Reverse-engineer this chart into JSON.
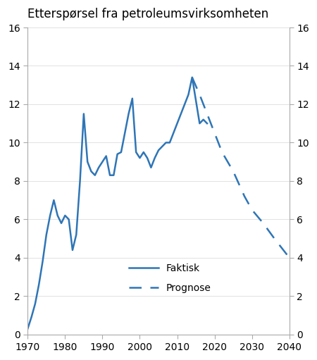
{
  "title": "Etterspørsel fra petroleumsvirksomheten",
  "line_color": "#2E75B6",
  "ylim": [
    0,
    16
  ],
  "yticks": [
    0,
    2,
    4,
    6,
    8,
    10,
    12,
    14,
    16
  ],
  "xlim": [
    1970,
    2040
  ],
  "xticks": [
    1970,
    1980,
    1990,
    2000,
    2010,
    2020,
    2030,
    2040
  ],
  "faktisk": {
    "years": [
      1970,
      1971,
      1972,
      1973,
      1974,
      1975,
      1976,
      1977,
      1978,
      1979,
      1980,
      1981,
      1982,
      1983,
      1984,
      1985,
      1986,
      1987,
      1988,
      1989,
      1990,
      1991,
      1992,
      1993,
      1994,
      1995,
      1996,
      1997,
      1998,
      1999,
      2000,
      2001,
      2002,
      2003,
      2004,
      2005,
      2006,
      2007,
      2008,
      2009,
      2010,
      2011,
      2012,
      2013,
      2014,
      2015,
      2016,
      2017,
      2018
    ],
    "values": [
      0.3,
      0.9,
      1.6,
      2.6,
      3.8,
      5.2,
      6.2,
      7.0,
      6.2,
      5.8,
      6.2,
      6.0,
      4.4,
      5.2,
      8.0,
      11.5,
      9.0,
      8.5,
      8.3,
      8.7,
      9.0,
      9.3,
      8.3,
      8.3,
      9.4,
      9.5,
      10.5,
      11.5,
      12.3,
      9.5,
      9.2,
      9.5,
      9.2,
      8.7,
      9.2,
      9.6,
      9.8,
      10.0,
      10.0,
      10.5,
      11.0,
      11.5,
      12.0,
      12.5,
      13.4,
      12.2,
      11.0,
      11.2,
      11.0
    ]
  },
  "prognose": {
    "years": [
      2014,
      2016,
      2018,
      2020,
      2022,
      2025,
      2028,
      2030,
      2033,
      2036,
      2040
    ],
    "values": [
      13.4,
      12.5,
      11.5,
      10.5,
      9.5,
      8.5,
      7.2,
      6.5,
      5.8,
      5.0,
      4.0
    ]
  },
  "legend_faktisk": "Faktisk",
  "legend_prognose": "Prognose",
  "background_color": "#ffffff",
  "spine_color": "#aaaaaa",
  "tick_color": "#aaaaaa"
}
